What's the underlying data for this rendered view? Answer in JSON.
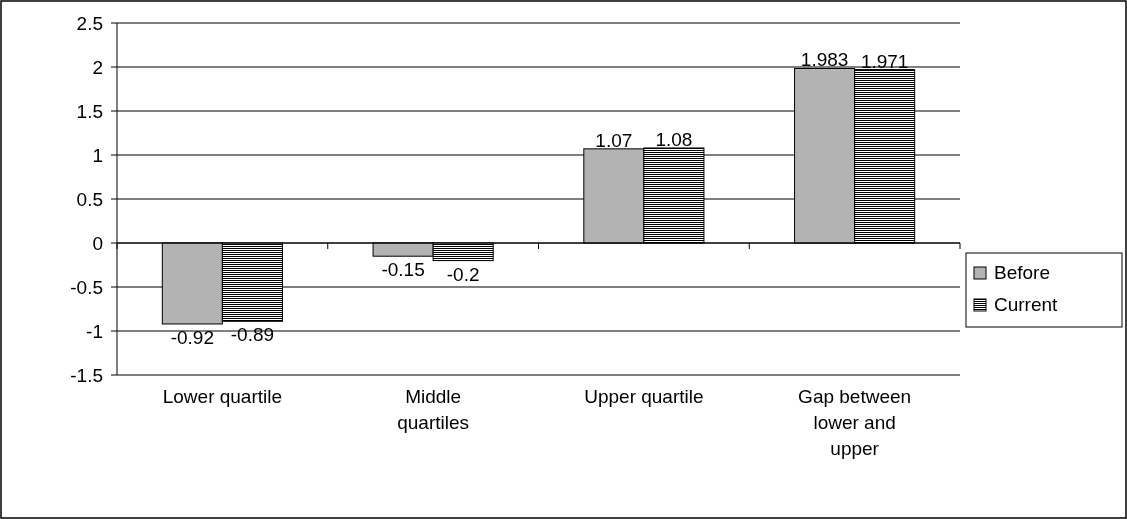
{
  "chart_data": {
    "type": "bar",
    "categories": [
      "Lower quartile",
      "Middle quartiles",
      "Upper quartile",
      "Gap between lower and upper"
    ],
    "series": [
      {
        "name": "Before",
        "color": "#b3b3b3",
        "values": [
          -0.92,
          -0.15,
          1.07,
          1.983
        ]
      },
      {
        "name": "Current",
        "color": "#000000",
        "values": [
          -0.89,
          -0.2,
          1.08,
          1.971
        ]
      }
    ],
    "ylim": [
      -1.5,
      2.5
    ],
    "yticks": [
      -1.5,
      -1,
      -0.5,
      0,
      0.5,
      1,
      1.5,
      2,
      2.5
    ],
    "grid": "y",
    "legend": "right",
    "data_labels": true
  }
}
